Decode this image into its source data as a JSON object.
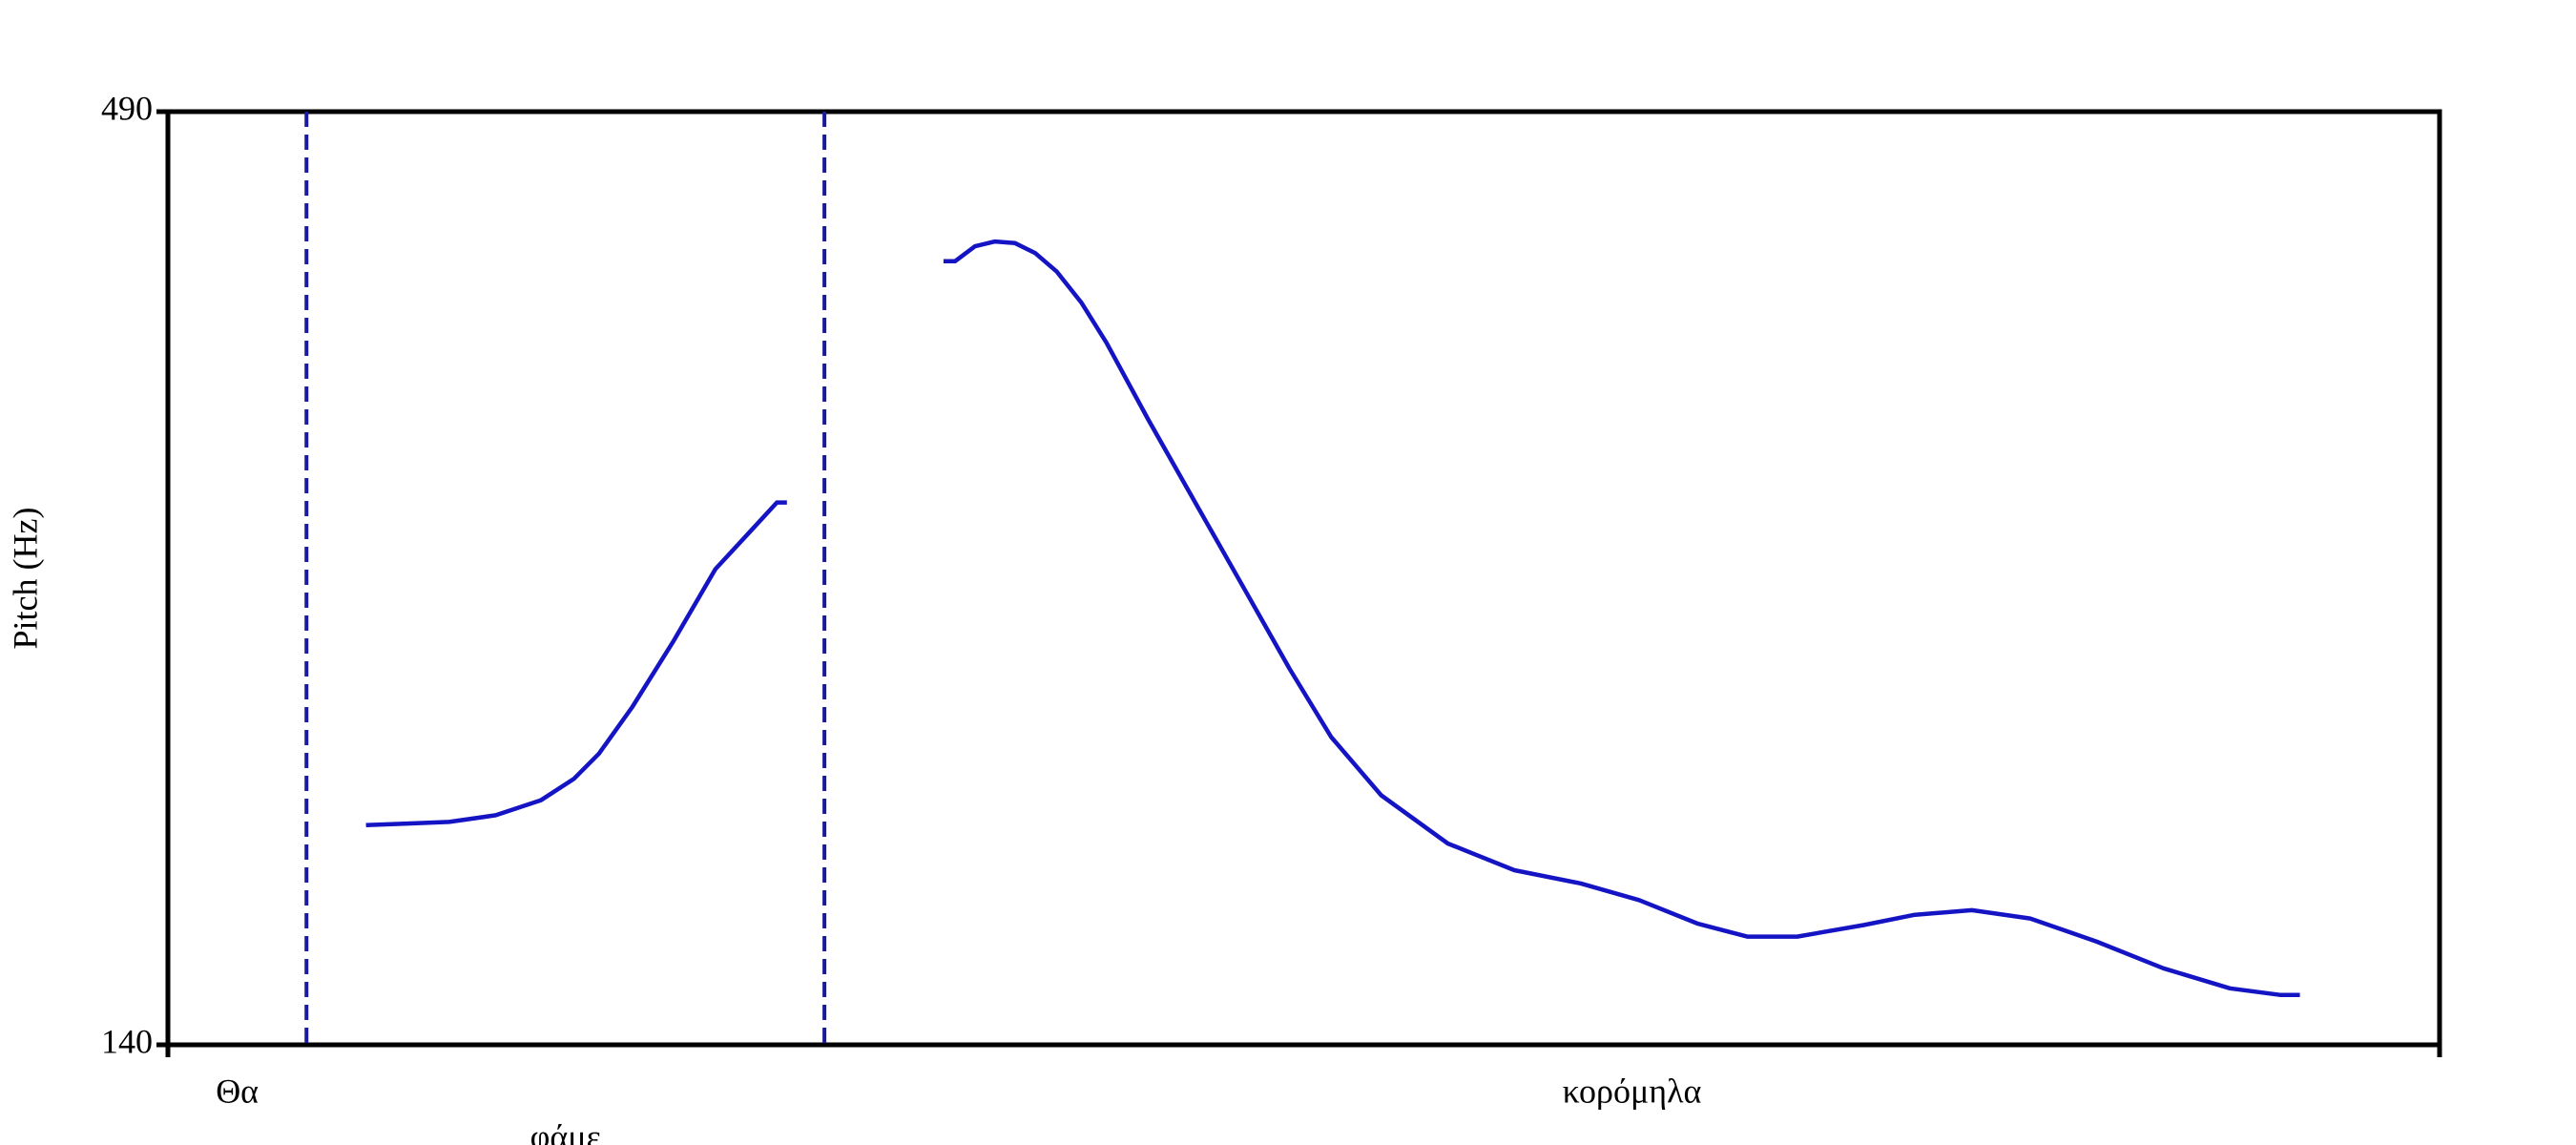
{
  "chart_data": {
    "type": "line",
    "y_label": "Pitch (Hz)",
    "ylim": [
      140,
      490
    ],
    "yticks": [
      140,
      490
    ],
    "xlim": [
      0,
      1
    ],
    "boundaries": [
      0.061,
      0.289
    ],
    "words": [
      "Θα",
      "φάμε",
      "κορόμηλα"
    ],
    "boundary_color": "#1a1a9c",
    "series": [
      {
        "color": "#1414c4",
        "x": [
          0.0872,
          0.1055,
          0.1238,
          0.1443,
          0.1641,
          0.1788,
          0.1897,
          0.2044,
          0.2227,
          0.241,
          0.2593,
          0.2681,
          0.2725,
          null,
          0.3414,
          0.3465,
          0.3553,
          0.3641,
          0.3729,
          0.3817,
          0.3912,
          0.4022,
          0.4132,
          0.4315,
          0.4535,
          0.4755,
          0.4938,
          0.5121,
          0.5341,
          0.5634,
          0.5927,
          0.622,
          0.6476,
          0.6733,
          0.6952,
          0.7172,
          0.7465,
          0.7685,
          0.7941,
          0.8198,
          0.8491,
          0.8784,
          0.9077,
          0.9297,
          0.9385
        ],
        "values": [
          222.4,
          223.0,
          223.6,
          226.1,
          231.7,
          239.8,
          249.2,
          266.7,
          291.6,
          318.4,
          335.3,
          343.4,
          343.4,
          null,
          433.9,
          433.9,
          439.5,
          441.3,
          440.7,
          437.0,
          430.1,
          418.3,
          403.3,
          374.6,
          341.5,
          308.5,
          281.0,
          255.4,
          233.6,
          215.5,
          205.5,
          200.5,
          194.3,
          185.5,
          180.6,
          180.6,
          184.9,
          188.7,
          190.5,
          187.4,
          178.7,
          168.7,
          161.2,
          158.7,
          158.7
        ]
      }
    ]
  }
}
